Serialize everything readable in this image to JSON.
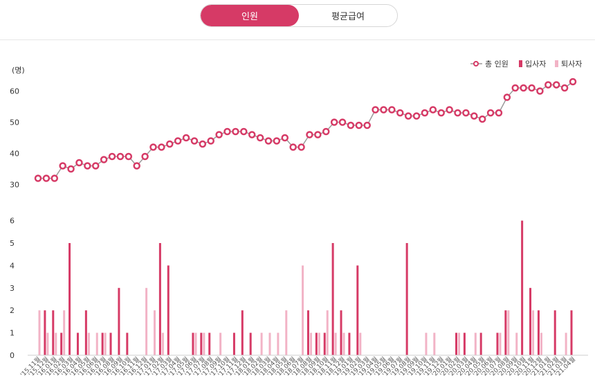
{
  "tabs": [
    {
      "label": "인원",
      "active": true
    },
    {
      "label": "평균급여",
      "active": false
    }
  ],
  "colors": {
    "accent": "#d63a66",
    "line": "#9a9a9a",
    "hire": "#d63a66",
    "resign": "#f2b3c6"
  },
  "chart_data": {
    "type": "line+bar",
    "unit_label": "(명)",
    "legend": [
      {
        "label": "총 인원",
        "kind": "line-marker"
      },
      {
        "label": "입사자",
        "kind": "bar"
      },
      {
        "label": "퇴사자",
        "kind": "bar"
      }
    ],
    "legend_position": "top-right",
    "upper_axis": {
      "ticks": [
        30,
        40,
        50,
        60
      ],
      "ylim": [
        27,
        67
      ]
    },
    "lower_axis": {
      "ticks": [
        0,
        1,
        2,
        3,
        4,
        5,
        6
      ],
      "ylim": [
        0,
        6.1
      ]
    },
    "x": [
      "'15.11월",
      "'15.12월",
      "'16.01월",
      "'16.02월",
      "'16.03월",
      "'16.04월",
      "'16.05월",
      "'16.06월",
      "'16.07월",
      "'16.08월",
      "'16.09월",
      "'16.10월",
      "'16.11월",
      "'16.12월",
      "'17.01월",
      "'17.02월",
      "'17.03월",
      "'17.04월",
      "'17.05월",
      "'17.06월",
      "'17.07월",
      "'17.08월",
      "'17.09월",
      "'17.10월",
      "'17.11월",
      "'17.12월",
      "'18.01월",
      "'18.02월",
      "'18.03월",
      "'18.04월",
      "'18.05월",
      "'18.06월",
      "'18.07월",
      "'18.08월",
      "'18.09월",
      "'18.10월",
      "'18.11월",
      "'18.12월",
      "'19.01월",
      "'19.02월",
      "'19.03월",
      "'19.04월",
      "'19.05월",
      "'19.06월",
      "'19.07월",
      "'19.08월",
      "'19.09월",
      "'19.10월",
      "'19.11월",
      "'19.12월",
      "'20.01월",
      "'20.02월",
      "'20.03월",
      "'20.04월",
      "'20.05월",
      "'20.06월",
      "'20.07월",
      "'20.08월",
      "'20.09월",
      "'20.10월",
      "'20.11월",
      "'20.12월",
      "'21.01월",
      "'21.02월",
      "'21.03월",
      "'21.04월"
    ],
    "series": [
      {
        "name": "총 인원",
        "type": "line",
        "values": [
          32,
          32,
          32,
          36,
          35,
          37,
          36,
          36,
          38,
          39,
          39,
          39,
          36,
          39,
          42,
          42,
          43,
          44,
          45,
          44,
          43,
          44,
          46,
          47,
          47,
          47,
          46,
          45,
          44,
          44,
          45,
          42,
          42,
          46,
          46,
          47,
          50,
          50,
          49,
          49,
          49,
          54,
          54,
          54,
          53,
          52,
          52,
          53,
          54,
          53,
          54,
          53,
          53,
          52,
          51,
          53,
          53,
          58,
          61,
          61,
          61,
          60,
          62,
          62,
          61,
          63
        ]
      },
      {
        "name": "입사자",
        "type": "bar",
        "values": [
          0,
          2,
          2,
          1,
          5,
          1,
          2,
          0,
          1,
          1,
          3,
          1,
          0,
          0,
          0,
          5,
          4,
          0,
          0,
          1,
          1,
          1,
          0,
          0,
          1,
          2,
          1,
          0,
          0,
          0,
          0,
          0,
          0,
          2,
          1,
          1,
          5,
          2,
          1,
          4,
          0,
          0,
          0,
          0,
          0,
          5,
          0,
          0,
          0,
          0,
          0,
          1,
          1,
          0,
          1,
          0,
          1,
          2,
          0,
          6,
          3,
          2,
          0,
          2,
          0,
          2
        ]
      },
      {
        "name": "퇴사자",
        "type": "bar",
        "values": [
          2,
          1,
          1,
          2,
          0,
          0,
          1,
          1,
          1,
          0,
          0,
          0,
          0,
          3,
          2,
          1,
          0,
          0,
          0,
          1,
          1,
          0,
          1,
          0,
          0,
          0,
          0,
          1,
          1,
          1,
          2,
          0,
          4,
          1,
          1,
          2,
          1,
          1,
          0,
          1,
          0,
          0,
          0,
          0,
          0,
          0,
          0,
          1,
          1,
          0,
          0,
          1,
          0,
          1,
          0,
          0,
          1,
          2,
          1,
          0,
          2,
          1,
          0,
          0,
          1,
          0
        ]
      }
    ],
    "grid": false
  }
}
